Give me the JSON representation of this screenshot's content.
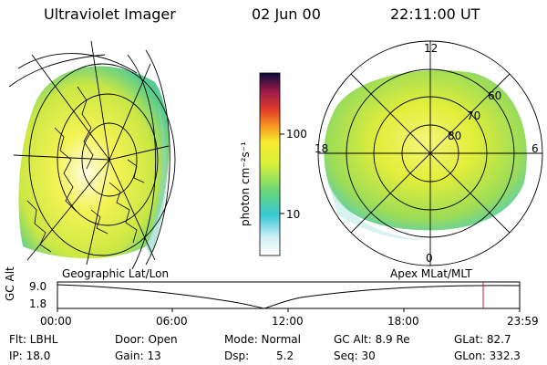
{
  "header": {
    "title": "Ultraviolet Imager",
    "date": "02 Jun 00",
    "time": "22:11:00 UT"
  },
  "colorbar": {
    "label": "photon cm⁻²s⁻¹",
    "ticks": [
      "100",
      "10"
    ]
  },
  "geo_panel": {
    "caption": "Geographic Lat/Lon"
  },
  "apex_panel": {
    "caption": "Apex MLat/MLT",
    "mlt_labels": {
      "top": "12",
      "left": "18",
      "right": "6",
      "bottom": "0"
    },
    "mlat_labels": [
      "60",
      "70",
      "80"
    ]
  },
  "timeline": {
    "axis_label": "GC Alt",
    "y_ticks": [
      "9.0",
      "1.8"
    ],
    "x_ticks": [
      "00:00",
      "06:00",
      "12:00",
      "18:00",
      "23:59"
    ],
    "current_marker_color": "#cc2222"
  },
  "info": {
    "filter": "Flt: LBHL",
    "ip": "IP: 18.0",
    "door": "Door: Open",
    "gain": "Gain: 13",
    "mode": "Mode: Normal",
    "dsp_label": "Dsp:",
    "dsp_value": "5.2",
    "gc_alt": "GC Alt: 8.9 Re",
    "seq": "Seq: 30",
    "glat": "GLat: 82.7",
    "glon": "GLon: 332.3"
  }
}
